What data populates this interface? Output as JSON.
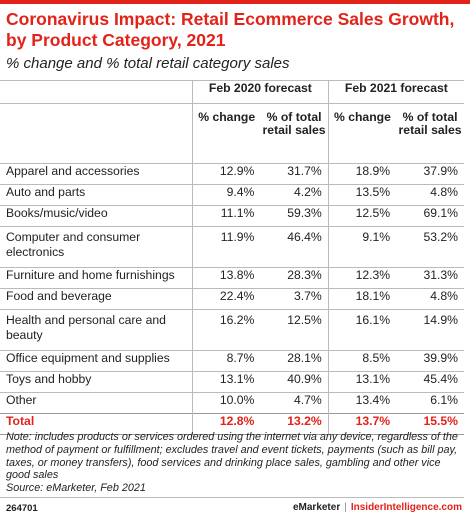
{
  "title": "Coronavirus Impact: Retail Ecommerce Sales Growth, by Product Category, 2021",
  "subtitle": "% change and % total retail category sales",
  "table": {
    "group_headers": [
      "Feb 2020 forecast",
      "Feb 2021 forecast"
    ],
    "sub_headers": [
      "% change",
      "% of total retail sales",
      "% change",
      "% of total retail sales"
    ],
    "rows": [
      {
        "category": "Apparel and accessories",
        "v": [
          "12.9%",
          "31.7%",
          "18.9%",
          "37.9%"
        ]
      },
      {
        "category": "Auto and parts",
        "v": [
          "9.4%",
          "4.2%",
          "13.5%",
          "4.8%"
        ]
      },
      {
        "category": "Books/music/video",
        "v": [
          "11.1%",
          "59.3%",
          "12.5%",
          "69.1%"
        ]
      },
      {
        "category": "Computer and consumer electronics",
        "v": [
          "11.9%",
          "46.4%",
          "9.1%",
          "53.2%"
        ]
      },
      {
        "category": "Furniture and home furnishings",
        "v": [
          "13.8%",
          "28.3%",
          "12.3%",
          "31.3%"
        ]
      },
      {
        "category": "Food and beverage",
        "v": [
          "22.4%",
          "3.7%",
          "18.1%",
          "4.8%"
        ]
      },
      {
        "category": "Health and personal care and beauty",
        "v": [
          "16.2%",
          "12.5%",
          "16.1%",
          "14.9%"
        ]
      },
      {
        "category": "Office equipment and supplies",
        "v": [
          "8.7%",
          "28.1%",
          "8.5%",
          "39.9%"
        ]
      },
      {
        "category": "Toys and hobby",
        "v": [
          "13.1%",
          "40.9%",
          "13.1%",
          "45.4%"
        ]
      },
      {
        "category": "Other",
        "v": [
          "10.0%",
          "4.7%",
          "13.4%",
          "6.1%"
        ]
      }
    ],
    "total": {
      "category": "Total",
      "v": [
        "12.8%",
        "13.2%",
        "13.7%",
        "15.5%"
      ]
    }
  },
  "note": "Note: includes products or services ordered using the internet via any device, regardless of the method of payment or fulfillment; excludes travel and event tickets, payments (such as bill pay, taxes, or money transfers), food services and drinking place sales, gambling and other vice good sales",
  "source": "Source: eMarketer, Feb 2021",
  "footer": {
    "chart_id": "264701",
    "brand_left": "eMarketer",
    "separator": "|",
    "brand_right": "InsiderIntelligence.com"
  },
  "colors": {
    "accent": "#e2231a",
    "rule": "#bbbbbb",
    "text": "#222222"
  }
}
